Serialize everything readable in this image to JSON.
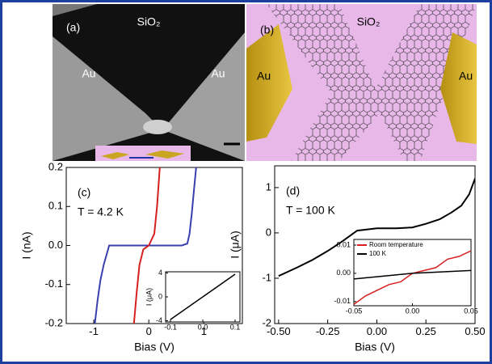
{
  "images": [
    {
      "label": "(a)",
      "texts": [
        "SiO₂",
        "Au",
        "Au"
      ]
    },
    {
      "label": "(b)",
      "texts": [
        "SiO₂",
        "Au",
        "Au"
      ]
    }
  ],
  "chart_data": [
    {
      "type": "line",
      "panel_label": "(c)",
      "annotation": "T = 4.2 K",
      "x_label": "Bias (V)",
      "y_label": "I (nA)",
      "xlim": [
        -1.5,
        1.7
      ],
      "ylim": [
        -0.2,
        0.2
      ],
      "xticks": [
        -1,
        0,
        1
      ],
      "yticks": [
        0.2,
        0.1,
        {
          "value": 0,
          "label": "0.0"
        },
        -0.1,
        -0.2
      ],
      "series": [
        {
          "color": "#3a3fae",
          "x": [
            -0.98,
            -0.93,
            -0.88,
            -0.82,
            -0.76,
            -0.72,
            -0.6,
            -0.3,
            0,
            0.3,
            0.6,
            0.7,
            0.74,
            0.78,
            0.82,
            0.86
          ],
          "values": [
            -0.2,
            -0.14,
            -0.09,
            -0.05,
            -0.02,
            0.0,
            0.0,
            0.0,
            0.0,
            0.0,
            0.0,
            0.005,
            0.03,
            0.08,
            0.14,
            0.2
          ]
        },
        {
          "color": "#d62020",
          "x": [
            -0.27,
            -0.22,
            -0.17,
            -0.1,
            0,
            0.1,
            0.15,
            0.2
          ],
          "values": [
            -0.2,
            -0.12,
            -0.05,
            -0.01,
            0.0,
            0.03,
            0.1,
            0.2
          ]
        }
      ]
    },
    {
      "type": "line",
      "y_label": "I (μA)",
      "xlim": [
        -0.115,
        0.115
      ],
      "ylim": [
        -4.2,
        4.2
      ],
      "xticks": [
        -0.1,
        {
          "value": 0,
          "label": "0.0"
        },
        0.1
      ],
      "yticks": [
        4,
        0,
        -4
      ],
      "series": [
        {
          "color": "#000000",
          "x": [
            -0.1,
            0,
            0.1
          ],
          "values": [
            -3.8,
            0,
            3.8
          ]
        }
      ]
    },
    {
      "type": "line",
      "panel_label": "(d)",
      "annotation": "T = 100 K",
      "x_label": "Bias (V)",
      "y_label": "I (μA)",
      "xlim": [
        -0.52,
        0.5
      ],
      "ylim": [
        -2,
        1.48
      ],
      "xticks": [
        {
          "value": -0.5,
          "label": "-0.50"
        },
        {
          "value": -0.25,
          "label": "-0.25"
        },
        {
          "value": 0,
          "label": "0.00"
        },
        {
          "value": 0.25,
          "label": "0.25"
        },
        {
          "value": 0.5,
          "label": "0.50"
        }
      ],
      "yticks": [
        1,
        0,
        -1,
        -2
      ],
      "series": [
        {
          "color": "#000000",
          "x": [
            -0.5,
            -0.45,
            -0.4,
            -0.33,
            -0.25,
            -0.18,
            -0.1,
            0,
            0.1,
            0.18,
            0.25,
            0.32,
            0.38,
            0.43,
            0.47,
            0.5
          ],
          "values": [
            -0.95,
            -0.85,
            -0.75,
            -0.6,
            -0.4,
            -0.2,
            0.05,
            0.1,
            0.1,
            0.12,
            0.2,
            0.3,
            0.45,
            0.6,
            0.85,
            1.2
          ]
        }
      ]
    },
    {
      "type": "line",
      "legend": "upper left",
      "xlim": [
        -0.05,
        0.05
      ],
      "ylim": [
        -0.0115,
        0.012
      ],
      "xticks": [
        -0.05,
        {
          "value": 0,
          "label": "0.00"
        },
        0.05
      ],
      "yticks": [
        0.01,
        {
          "value": 0,
          "label": "0.00"
        },
        -0.01
      ],
      "series": [
        {
          "name": "Room temperature",
          "color": "#d62020",
          "x": [
            -0.05,
            -0.04,
            -0.03,
            -0.02,
            -0.01,
            0,
            0.01,
            0.02,
            0.03,
            0.04,
            0.05
          ],
          "values": [
            -0.011,
            -0.008,
            -0.006,
            -0.004,
            -0.003,
            0,
            0.001,
            0.002,
            0.005,
            0.006,
            0.008
          ]
        },
        {
          "name": "100 K",
          "color": "#000000",
          "x": [
            -0.05,
            -0.025,
            0,
            0.025,
            0.05
          ],
          "values": [
            -0.002,
            -0.001,
            0,
            0.0005,
            0.001
          ]
        }
      ]
    }
  ]
}
